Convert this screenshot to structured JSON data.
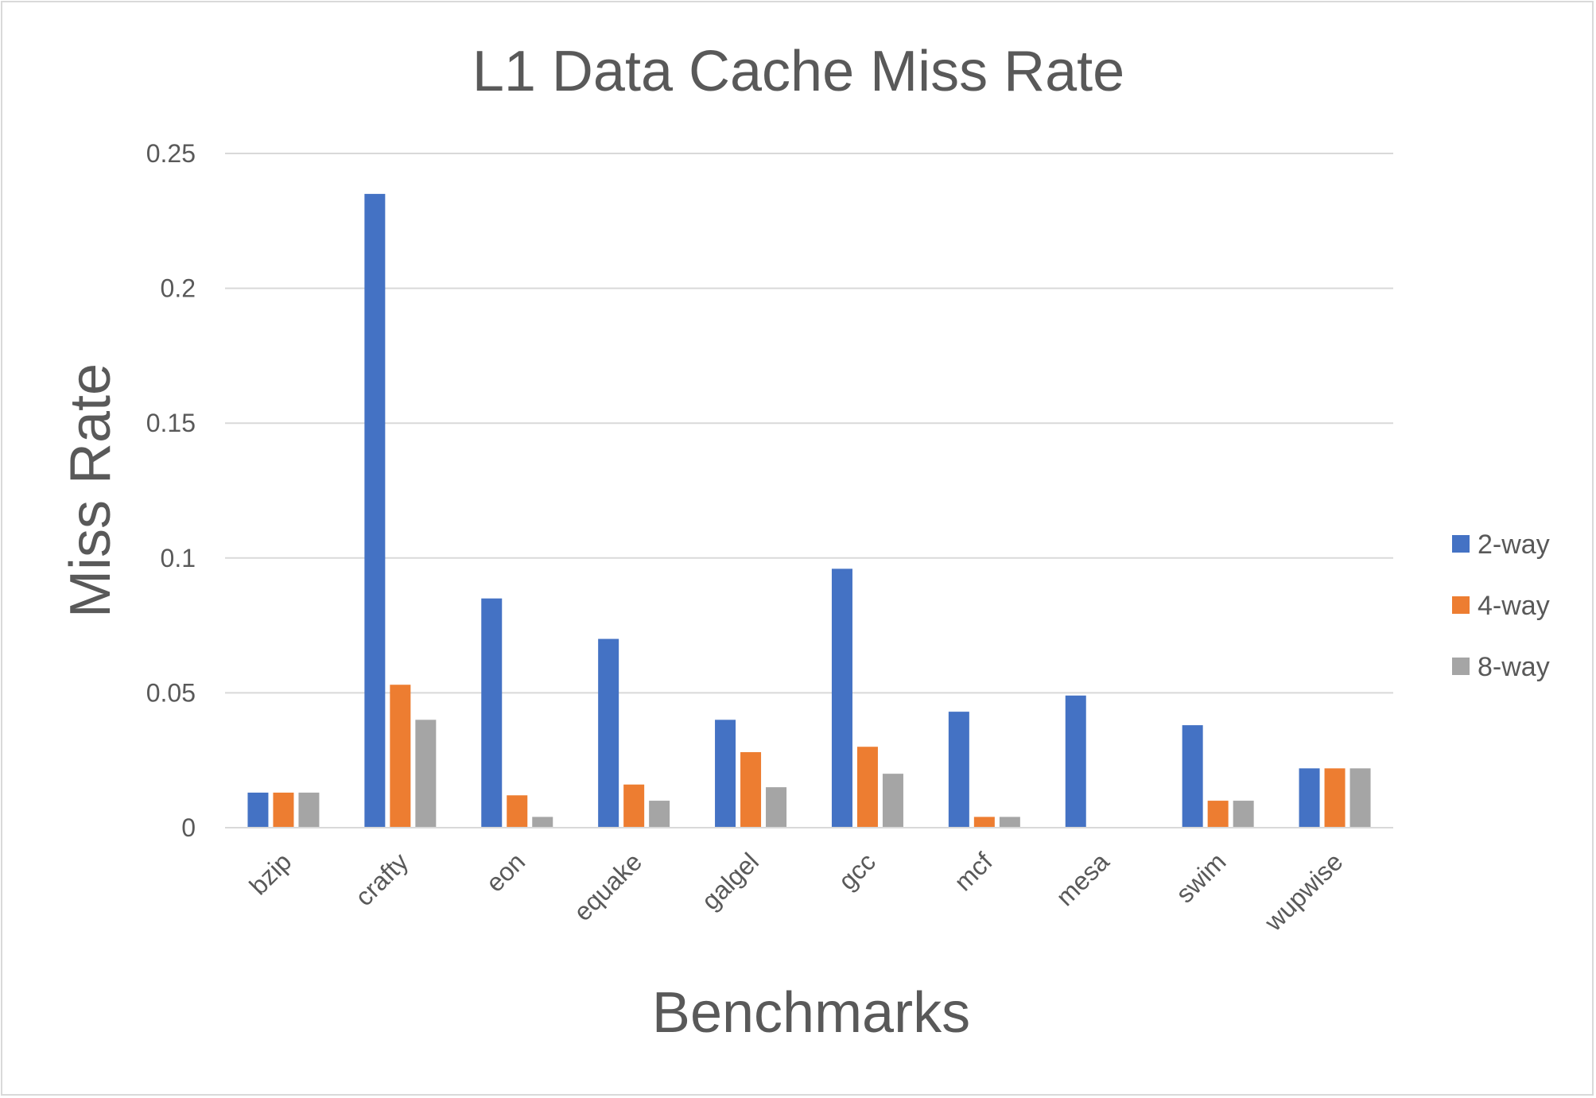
{
  "chart_data": {
    "type": "bar",
    "title": "L1 Data Cache Miss Rate",
    "xlabel": "Benchmarks",
    "ylabel": "Miss Rate",
    "categories": [
      "bzip",
      "crafty",
      "eon",
      "equake",
      "galgel",
      "gcc",
      "mcf",
      "mesa",
      "swim",
      "wupwise"
    ],
    "series": [
      {
        "name": "2-way",
        "color": "#4472c4",
        "values": [
          0.013,
          0.235,
          0.085,
          0.07,
          0.04,
          0.096,
          0.043,
          0.049,
          0.038,
          0.022
        ]
      },
      {
        "name": "4-way",
        "color": "#ed7d31",
        "values": [
          0.013,
          0.053,
          0.012,
          0.016,
          0.028,
          0.03,
          0.004,
          0.0,
          0.01,
          0.022
        ]
      },
      {
        "name": "8-way",
        "color": "#a5a5a5",
        "values": [
          0.013,
          0.04,
          0.004,
          0.01,
          0.015,
          0.02,
          0.004,
          0.0,
          0.01,
          0.022
        ]
      }
    ],
    "ylim": [
      0,
      0.25
    ],
    "yticks": [
      "0",
      "0.05",
      "0.1",
      "0.15",
      "0.2",
      "0.25"
    ],
    "ytick_values": [
      0,
      0.05,
      0.1,
      0.15,
      0.2,
      0.25
    ],
    "grid": true,
    "legend_position": "right"
  }
}
